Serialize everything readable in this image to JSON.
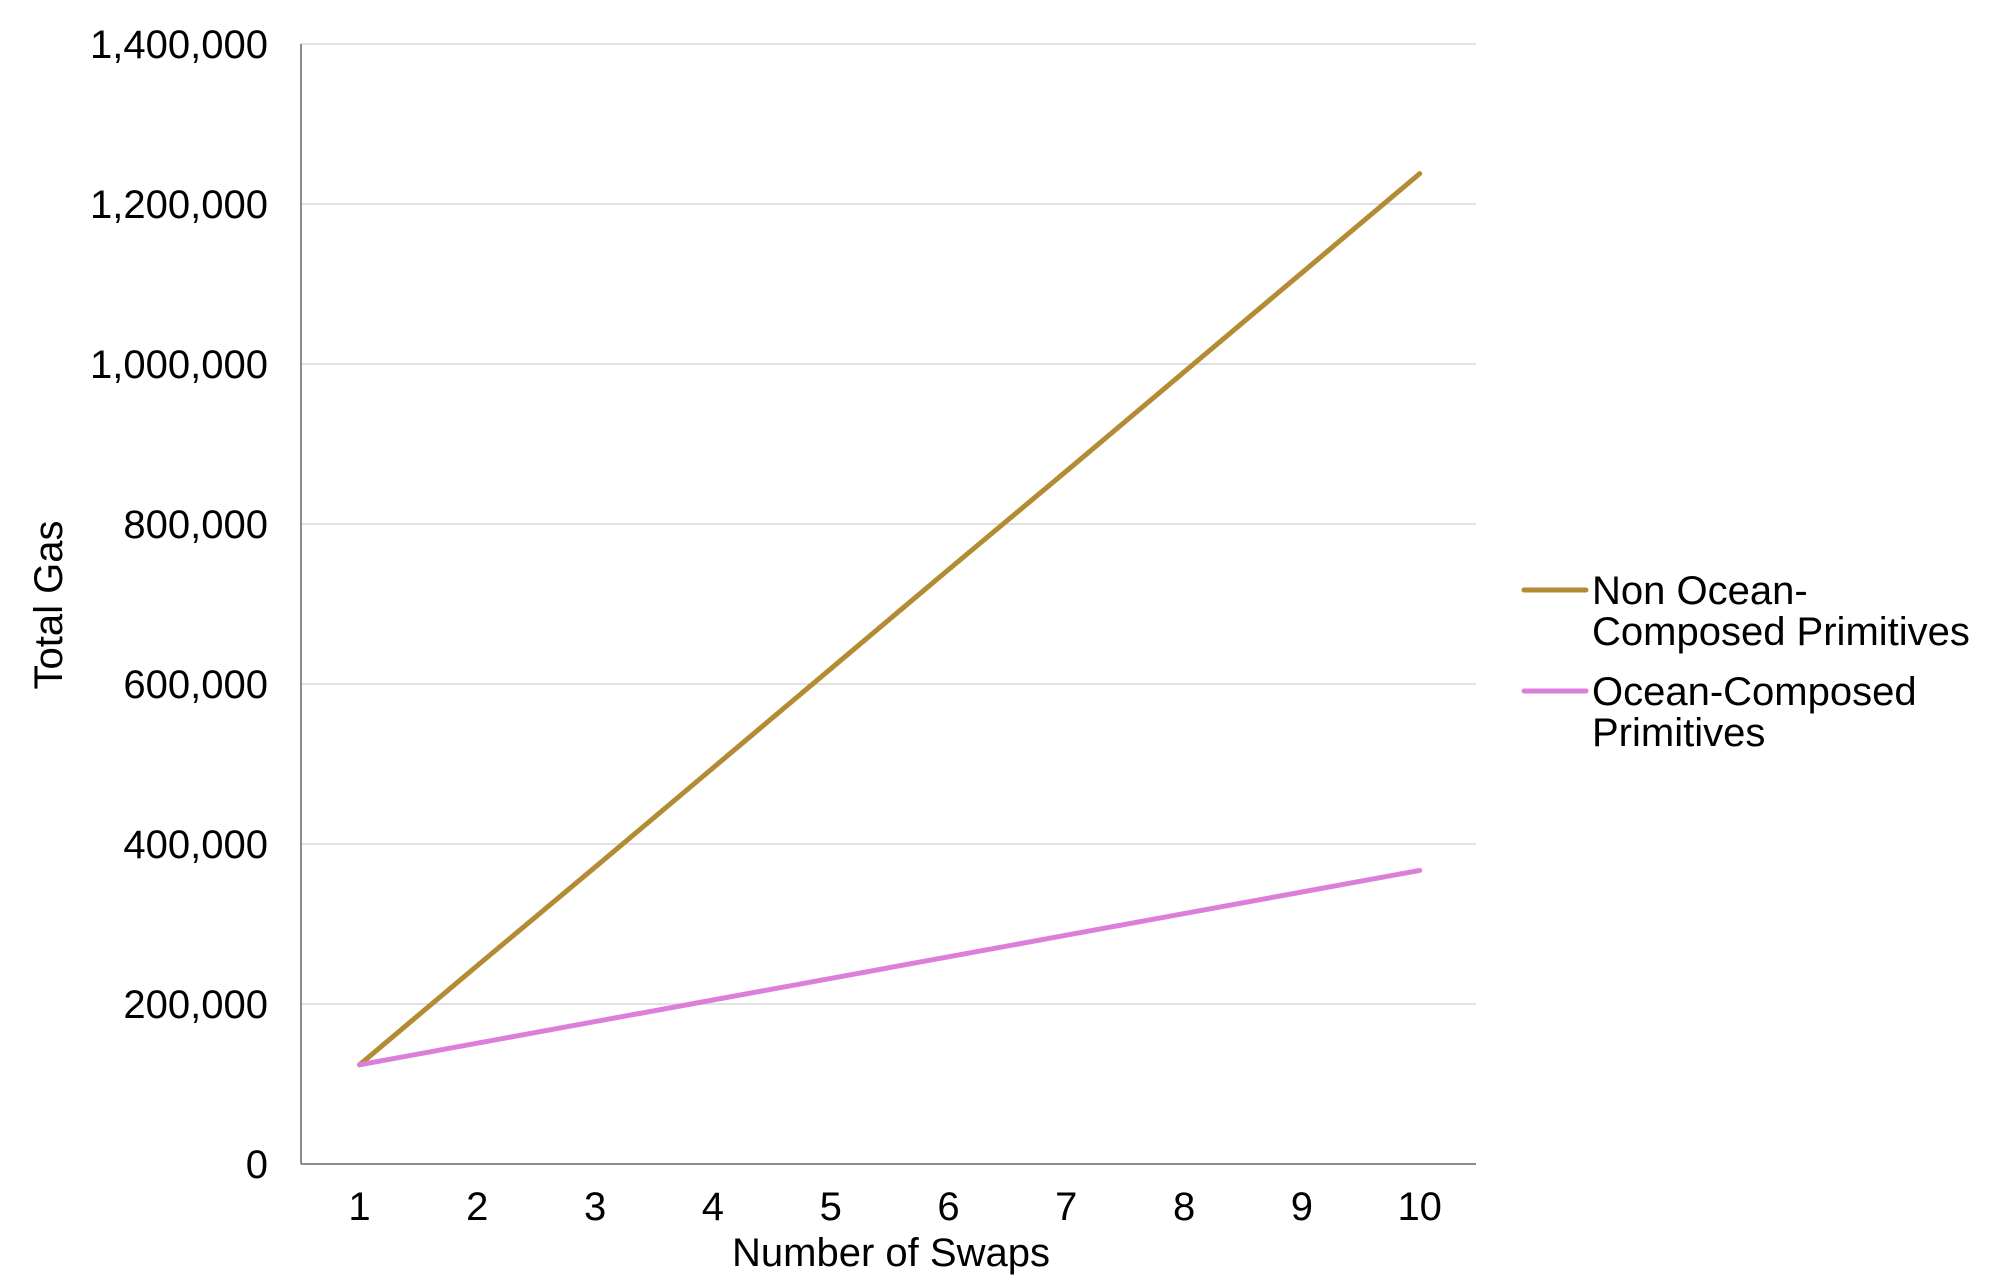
{
  "chart_data": {
    "type": "line",
    "title": "",
    "xlabel": "Number of Swaps",
    "ylabel": "Total Gas",
    "x": [
      1,
      2,
      3,
      4,
      5,
      6,
      7,
      8,
      9,
      10
    ],
    "x_tick_labels": [
      "1",
      "2",
      "3",
      "4",
      "5",
      "6",
      "7",
      "8",
      "9",
      "10"
    ],
    "y_tick_labels": [
      "0",
      "200,000",
      "400,000",
      "600,000",
      "800,000",
      "1,000,000",
      "1,200,000",
      "1,400,000"
    ],
    "y_ticks": [
      0,
      200000,
      400000,
      600000,
      800000,
      1000000,
      1200000,
      1400000
    ],
    "ylim": [
      0,
      1400000
    ],
    "grid": true,
    "legend_position": "right",
    "series": [
      {
        "name": "Non Ocean-Composed Primitives",
        "legend_lines": [
          "Non Ocean-",
          "Composed Primitives"
        ],
        "color": "#b38b33",
        "values": [
          124000,
          248000,
          371000,
          495000,
          619000,
          743000,
          866000,
          990000,
          1114000,
          1238000
        ]
      },
      {
        "name": "Ocean-Composed Primitives",
        "legend_lines": [
          "Ocean-Composed",
          "Primitives"
        ],
        "color": "#db7fdb",
        "values": [
          124000,
          151000,
          178000,
          205000,
          232000,
          259000,
          286000,
          313000,
          340000,
          367000
        ]
      }
    ]
  }
}
